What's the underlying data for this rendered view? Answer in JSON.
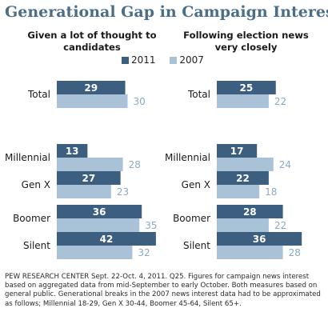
{
  "title": "Generational Gap in Campaign Interest",
  "legend": [
    {
      "name": "2011",
      "color": "#3c5f80"
    },
    {
      "name": "2007",
      "color": "#a9c2d8"
    }
  ],
  "footnote": "PEW RESEARCH CENTER Sept. 22-Oct. 4, 2011. Q25. Figures for campaign news interest based on aggregated data from mid-September to early October. Both measures based on general public. Generational breaks in the 2007 news interest data had to be approximated as follows; Millennial 18-29, Gen X 30-44, Boomer 45-64, Silent 65+.",
  "chart_data": [
    {
      "type": "bar",
      "orientation": "horizontal",
      "title": "Given a lot of thought to candidates",
      "categories": [
        "Total",
        "Millennial",
        "Gen X",
        "Boomer",
        "Silent"
      ],
      "series": [
        {
          "name": "2011",
          "values": [
            29,
            13,
            27,
            36,
            42
          ]
        },
        {
          "name": "2007",
          "values": [
            30,
            28,
            23,
            35,
            32
          ]
        }
      ]
    },
    {
      "type": "bar",
      "orientation": "horizontal",
      "title": "Following election news very closely",
      "categories": [
        "Total",
        "Millennial",
        "Gen X",
        "Boomer",
        "Silent"
      ],
      "series": [
        {
          "name": "2011",
          "values": [
            25,
            17,
            22,
            28,
            36
          ]
        },
        {
          "name": "2007",
          "values": [
            22,
            24,
            18,
            22,
            28
          ]
        }
      ]
    }
  ]
}
